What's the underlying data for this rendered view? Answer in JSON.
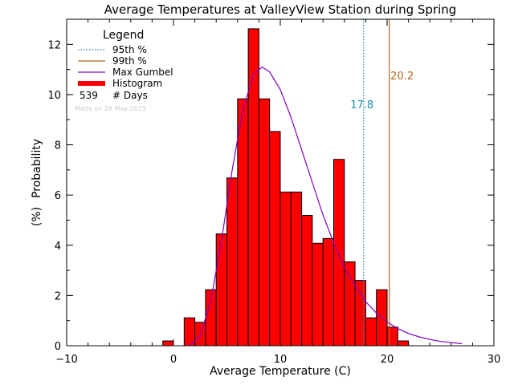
{
  "chart_data": {
    "type": "bar",
    "title": "Average Temperatures at ValleyView Station during Spring",
    "xlabel": "Average Temperature (C)",
    "ylabel": "Probability",
    "ylabel_unit": "(%)",
    "xlim": [
      -10,
      30
    ],
    "ylim": [
      0,
      13
    ],
    "x_ticks": [
      -10,
      0,
      10,
      20,
      30
    ],
    "y_ticks": [
      0,
      2,
      4,
      6,
      8,
      10,
      12
    ],
    "bin_width": 1,
    "histogram": {
      "bin_edges": [
        -1,
        0,
        1,
        2,
        3,
        4,
        5,
        6,
        7,
        8,
        9,
        10,
        11,
        12,
        13,
        14,
        15,
        16,
        17,
        18,
        19,
        20,
        21,
        22
      ],
      "values": [
        0.19,
        0,
        1.11,
        0.93,
        2.23,
        4.45,
        6.68,
        9.83,
        12.62,
        9.83,
        8.53,
        6.12,
        6.12,
        5.19,
        4.08,
        4.27,
        7.42,
        3.34,
        2.6,
        1.11,
        2.23,
        0.74,
        0.19
      ]
    },
    "gumbel": {
      "x": [
        1.5,
        2.5,
        3.5,
        4.5,
        5.5,
        6.5,
        7.5,
        8.3,
        9.0,
        10.0,
        11.0,
        12.0,
        13.0,
        14.0,
        15.0,
        16.0,
        17.0,
        18.0,
        19.0,
        20.0,
        21.0,
        22.0,
        23.0,
        24.0,
        25.0,
        26.0,
        27.0
      ],
      "y": [
        0.0,
        0.4,
        1.8,
        4.2,
        7.0,
        9.4,
        10.8,
        11.1,
        10.9,
        10.2,
        9.1,
        7.8,
        6.5,
        5.2,
        4.1,
        3.1,
        2.4,
        1.75,
        1.3,
        0.95,
        0.68,
        0.49,
        0.35,
        0.25,
        0.17,
        0.12,
        0.08
      ]
    },
    "p95": {
      "value": 17.8,
      "label": "17.8",
      "color": "#1a8cb5"
    },
    "p99": {
      "value": 20.2,
      "label": "20.2",
      "color": "#b5651d"
    },
    "legend": {
      "title": "Legend",
      "items": [
        {
          "label": "95th %",
          "style": "dotted",
          "color": "#1a8cb5"
        },
        {
          "label": "99th %",
          "style": "solid",
          "color": "#b5651d"
        },
        {
          "label": "Max Gumbel",
          "style": "solid",
          "color": "#8000c0"
        },
        {
          "label": "Histogram",
          "style": "thick",
          "color": "#ff0000"
        }
      ],
      "days_count": "539",
      "days_label": "# Days",
      "made_on": "Made on 29 May 2025"
    },
    "colors": {
      "histogram_fill": "#ff0000",
      "gumbel_line": "#8000c0"
    }
  }
}
